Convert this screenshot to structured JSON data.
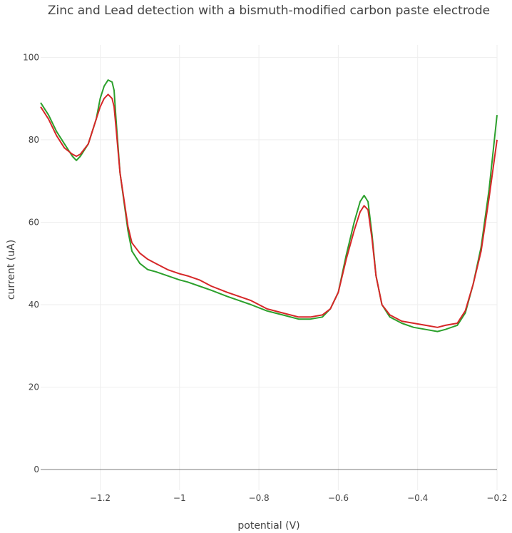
{
  "chart_data": {
    "type": "line",
    "title": "Zinc and Lead detection with a bismuth-modified carbon paste electrode",
    "xlabel": "potential (V)",
    "ylabel": "current (uA)",
    "xlim": [
      -1.35,
      -0.2
    ],
    "ylim": [
      -5,
      103
    ],
    "xticks": [
      -1.2,
      -1.0,
      -0.8,
      -0.6,
      -0.4,
      -0.2
    ],
    "xtick_labels": [
      "−1.2",
      "−1",
      "−0.8",
      "−0.6",
      "−0.4",
      "−0.2"
    ],
    "yticks": [
      0,
      20,
      40,
      60,
      80,
      100
    ],
    "ytick_labels": [
      "0",
      "20",
      "40",
      "60",
      "80",
      "100"
    ],
    "grid": true,
    "legend": "none",
    "series": [
      {
        "color": "#2ca02c",
        "x": [
          -1.35,
          -1.33,
          -1.31,
          -1.29,
          -1.27,
          -1.26,
          -1.25,
          -1.23,
          -1.21,
          -1.2,
          -1.19,
          -1.18,
          -1.17,
          -1.165,
          -1.16,
          -1.15,
          -1.13,
          -1.12,
          -1.1,
          -1.08,
          -1.06,
          -1.03,
          -1.0,
          -0.98,
          -0.95,
          -0.92,
          -0.88,
          -0.85,
          -0.82,
          -0.78,
          -0.74,
          -0.7,
          -0.67,
          -0.64,
          -0.62,
          -0.6,
          -0.58,
          -0.56,
          -0.545,
          -0.535,
          -0.525,
          -0.515,
          -0.505,
          -0.49,
          -0.47,
          -0.44,
          -0.41,
          -0.38,
          -0.35,
          -0.33,
          -0.3,
          -0.28,
          -0.26,
          -0.24,
          -0.22,
          -0.2
        ],
        "y": [
          89,
          86,
          82,
          79,
          76,
          75,
          76,
          79,
          85,
          90,
          93,
          94.5,
          94,
          92,
          85,
          72,
          58,
          53,
          50,
          48.5,
          48,
          47,
          46,
          45.5,
          44.5,
          43.5,
          42,
          41,
          40,
          38.5,
          37.5,
          36.5,
          36.5,
          37,
          39,
          43,
          52,
          60,
          65,
          66.5,
          65,
          57,
          47,
          40,
          37,
          35.5,
          34.5,
          34,
          33.5,
          34,
          35,
          38,
          45,
          54,
          68,
          86
        ]
      },
      {
        "color": "#d62728",
        "x": [
          -1.35,
          -1.33,
          -1.31,
          -1.29,
          -1.27,
          -1.26,
          -1.25,
          -1.23,
          -1.21,
          -1.2,
          -1.19,
          -1.18,
          -1.17,
          -1.165,
          -1.16,
          -1.15,
          -1.13,
          -1.12,
          -1.1,
          -1.08,
          -1.06,
          -1.03,
          -1.0,
          -0.98,
          -0.95,
          -0.92,
          -0.88,
          -0.85,
          -0.82,
          -0.78,
          -0.74,
          -0.7,
          -0.67,
          -0.64,
          -0.62,
          -0.6,
          -0.58,
          -0.56,
          -0.545,
          -0.535,
          -0.525,
          -0.515,
          -0.505,
          -0.49,
          -0.47,
          -0.44,
          -0.41,
          -0.38,
          -0.35,
          -0.33,
          -0.3,
          -0.28,
          -0.26,
          -0.24,
          -0.22,
          -0.2
        ],
        "y": [
          88,
          85,
          81,
          78,
          76.5,
          76,
          76.5,
          79,
          85,
          88,
          90,
          91,
          90,
          88,
          83,
          72,
          59,
          55,
          52.5,
          51,
          50,
          48.5,
          47.5,
          47,
          46,
          44.5,
          43,
          42,
          41,
          39,
          38,
          37,
          37,
          37.5,
          39,
          43,
          51,
          58,
          62.5,
          64,
          63,
          56,
          47,
          40,
          37.5,
          36,
          35.5,
          35,
          34.5,
          35,
          35.5,
          38.5,
          45,
          53,
          66,
          80
        ]
      }
    ]
  }
}
